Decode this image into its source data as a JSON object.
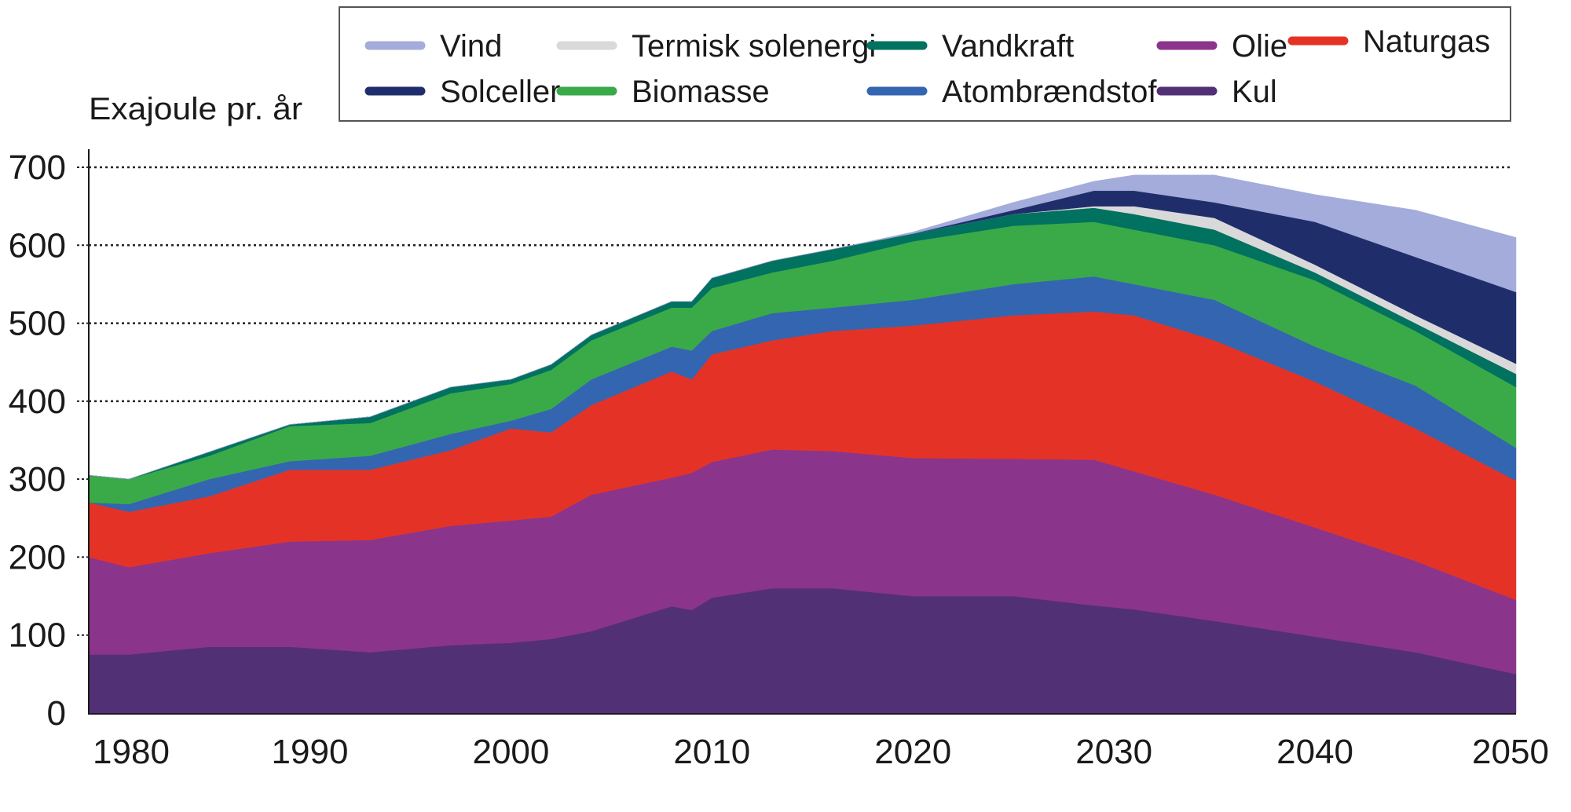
{
  "chart_data": {
    "type": "area",
    "stacked": true,
    "title": "",
    "xlabel": "",
    "ylabel": "Exajoule pr. år",
    "xlim": [
      1979,
      2050
    ],
    "ylim": [
      0,
      700
    ],
    "x_ticks": [
      1980,
      1990,
      2000,
      2010,
      2020,
      2030,
      2040,
      2050
    ],
    "y_ticks": [
      0,
      100,
      200,
      300,
      400,
      500,
      600,
      700
    ],
    "grid": "dotted horizontal lines at 400, 500, 600, 700",
    "legend_position": "top",
    "x": [
      1979,
      1981,
      1985,
      1989,
      1993,
      1997,
      2000,
      2002,
      2004,
      2008,
      2009,
      2010,
      2013,
      2016,
      2020,
      2025,
      2029,
      2031,
      2035,
      2040,
      2045,
      2050
    ],
    "series": [
      {
        "name": "Kul",
        "color": "#523076",
        "values": [
          75,
          75,
          85,
          85,
          78,
          87,
          90,
          95,
          105,
          137,
          132,
          148,
          160,
          160,
          150,
          150,
          138,
          133,
          118,
          98,
          78,
          50
        ]
      },
      {
        "name": "Olie",
        "color": "#8b348b",
        "values": [
          125,
          112,
          120,
          135,
          144,
          153,
          157,
          157,
          175,
          165,
          176,
          174,
          178,
          176,
          177,
          176,
          187,
          177,
          162,
          140,
          117,
          95
        ]
      },
      {
        "name": "Naturgas",
        "color": "#e43326",
        "values": [
          70,
          71,
          73,
          92,
          90,
          97,
          118,
          108,
          115,
          136,
          120,
          138,
          140,
          154,
          170,
          184,
          190,
          200,
          198,
          187,
          170,
          153
        ]
      },
      {
        "name": "Atombrændstof",
        "color": "#3465b0",
        "values": [
          0,
          10,
          22,
          11,
          18,
          21,
          10,
          30,
          33,
          32,
          37,
          30,
          35,
          30,
          33,
          40,
          45,
          40,
          52,
          45,
          55,
          42
        ]
      },
      {
        "name": "Biomasse",
        "color": "#3aaa49",
        "values": [
          35,
          32,
          30,
          45,
          42,
          52,
          47,
          50,
          50,
          50,
          55,
          55,
          52,
          60,
          75,
          75,
          70,
          70,
          70,
          85,
          70,
          78
        ]
      },
      {
        "name": "Vandkraft",
        "color": "#00725f",
        "values": [
          0,
          0,
          5,
          2,
          8,
          8,
          6,
          7,
          7,
          8,
          8,
          13,
          15,
          15,
          10,
          15,
          18,
          20,
          20,
          10,
          10,
          17
        ]
      },
      {
        "name": "Termisk solenergi",
        "color": "#d9d9d9",
        "values": [
          0,
          0,
          0,
          0,
          0,
          0,
          0,
          0,
          0,
          0,
          0,
          0,
          0,
          0,
          0,
          0,
          2,
          10,
          15,
          10,
          10,
          13
        ]
      },
      {
        "name": "Solceller",
        "color": "#1f2e6b",
        "values": [
          0,
          0,
          0,
          0,
          0,
          0,
          0,
          0,
          0,
          0,
          0,
          0,
          0,
          0,
          0,
          5,
          20,
          20,
          20,
          55,
          75,
          92
        ]
      },
      {
        "name": "Vind",
        "color": "#a3acdb",
        "values": [
          0,
          0,
          0,
          0,
          0,
          0,
          0,
          0,
          0,
          0,
          0,
          0,
          0,
          0,
          2,
          10,
          12,
          20,
          35,
          35,
          60,
          70
        ]
      }
    ],
    "legend_order": [
      "Vind",
      "Termisk solenergi",
      "Vandkraft",
      "Olie",
      "Naturgas",
      "Solceller",
      "Biomasse",
      "Atombrændstof",
      "Kul"
    ]
  }
}
